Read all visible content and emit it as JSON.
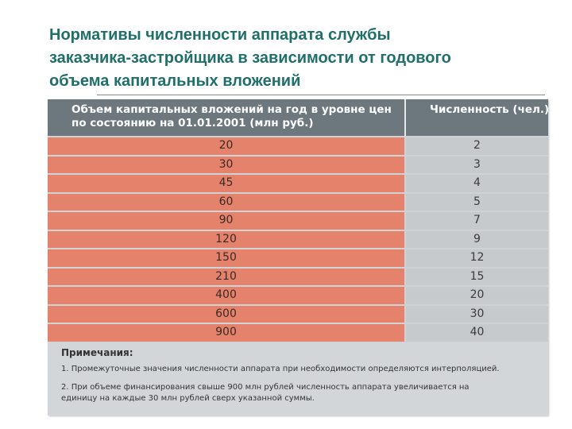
{
  "title": {
    "lines": [
      "Нормативы численности аппарата службы",
      "заказчика-застройщика в зависимости от годового",
      "объема капитальных вложений"
    ]
  },
  "table": {
    "header": {
      "col1_lines": [
        "Объем капитальных вложений на год в уровне цен",
        "по состоянию на 01.01.2001 (млн руб.)"
      ],
      "col2": "Численность (чел.)"
    },
    "rows": [
      {
        "volume": "20",
        "staff": "2"
      },
      {
        "volume": "30",
        "staff": "3"
      },
      {
        "volume": "45",
        "staff": "4"
      },
      {
        "volume": "60",
        "staff": "5"
      },
      {
        "volume": "90",
        "staff": "7"
      },
      {
        "volume": "120",
        "staff": "9"
      },
      {
        "volume": "150",
        "staff": "12"
      },
      {
        "volume": "210",
        "staff": "15"
      },
      {
        "volume": "400",
        "staff": "20"
      },
      {
        "volume": "600",
        "staff": "30"
      },
      {
        "volume": "900",
        "staff": "40"
      }
    ]
  },
  "notes": {
    "heading": "Примечания:",
    "item1": "1. Промежуточные значения численности аппарата при необходимости определяются интерполяцией.",
    "item2_lines": [
      "2.  При объеме финансирования свыше 900 млн рублей численность аппарата увеличивается на",
      "      единицу на каждые  30 млн рублей сверх указанной суммы."
    ]
  }
}
